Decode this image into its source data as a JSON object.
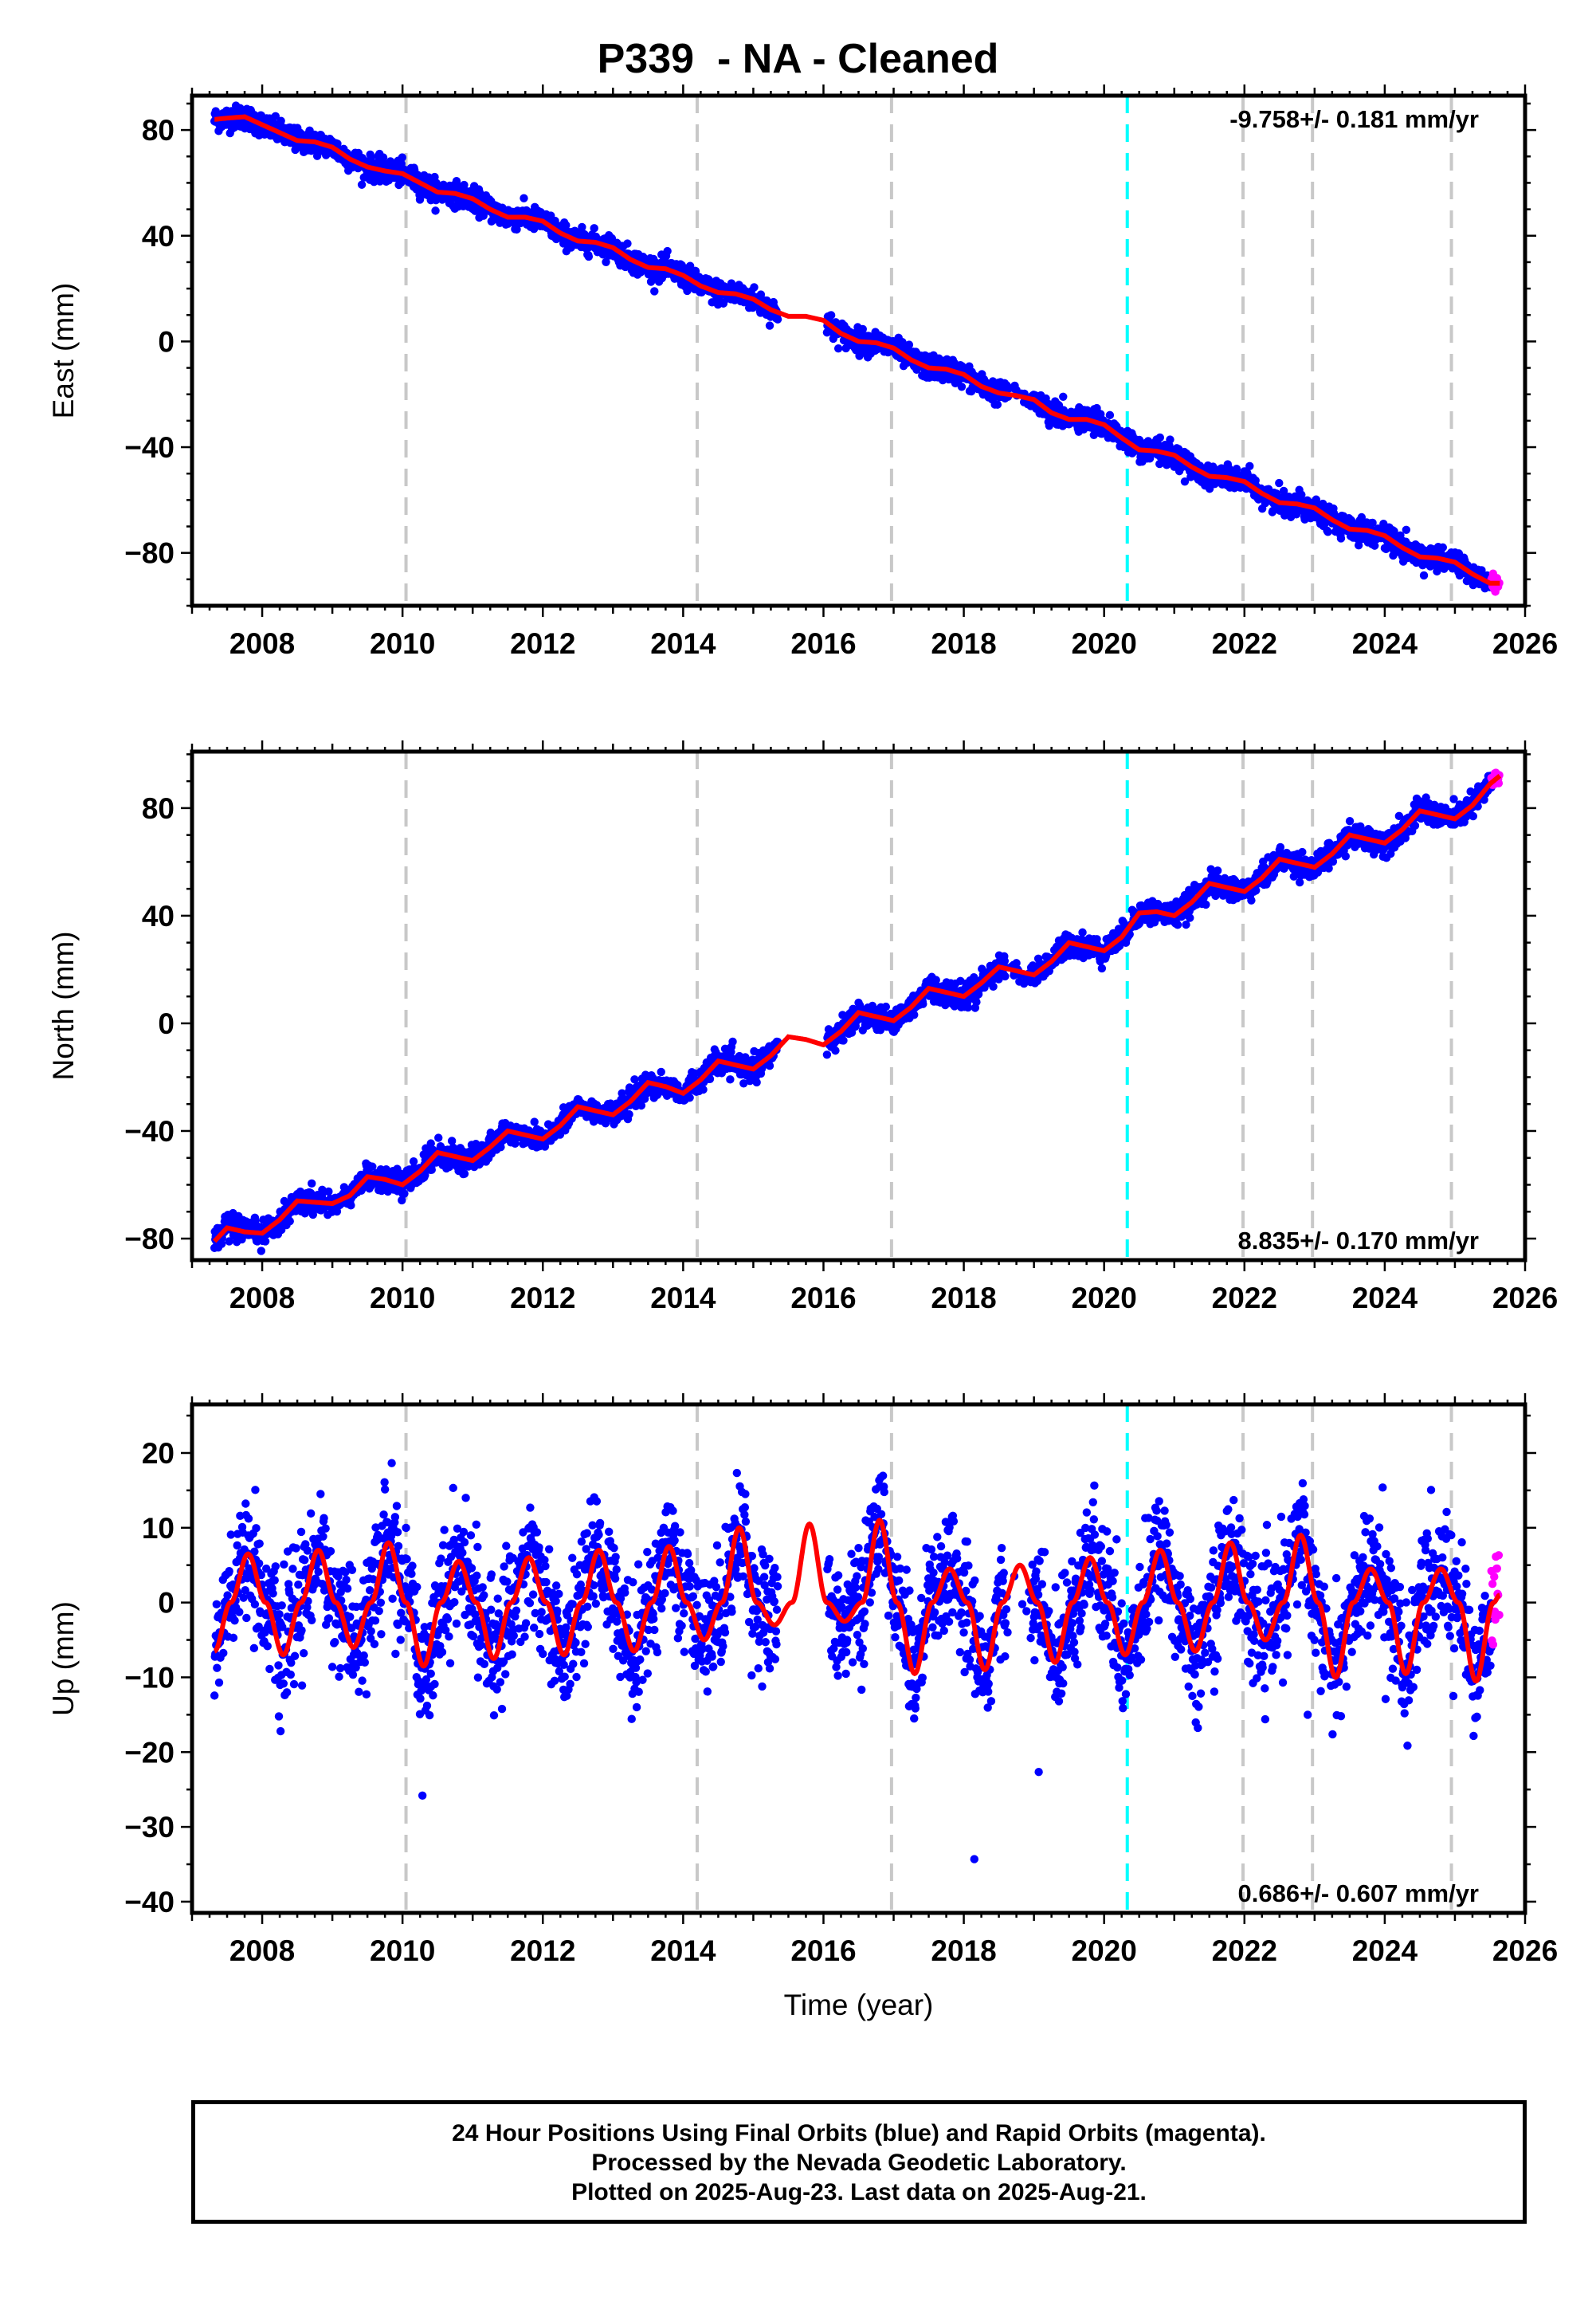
{
  "title": "P339  - NA - Cleaned",
  "caption": {
    "line1": "24 Hour Positions Using Final Orbits (blue) and Rapid Orbits (magenta).",
    "line2": "Processed by the Nevada Geodetic Laboratory.",
    "line3": "Plotted on 2025-Aug-23. Last data on 2025-Aug-21."
  },
  "colors": {
    "final_orbits": "#0000ff",
    "rapid_orbits": "#ff00ff",
    "model_fit": "#ff0000",
    "equipment_change": "#c8c8c8",
    "cyan_event": "#00ffff"
  },
  "chart_data": [
    {
      "type": "scatter",
      "panel": "east",
      "ylabel": "East (mm)",
      "xlabel": "",
      "xlim": [
        2007.0,
        2026.0
      ],
      "ylim": [
        -100,
        93
      ],
      "x_ticks": [
        2008,
        2010,
        2012,
        2014,
        2016,
        2018,
        2020,
        2022,
        2024,
        2026
      ],
      "y_ticks": [
        -80,
        -40,
        0,
        40,
        80
      ],
      "rate_label": "-9.758+/- 0.181 mm/yr",
      "rate_position": "top-right",
      "grid": false,
      "vertical_lines": {
        "gray_dashed": [
          2010.05,
          2014.2,
          2016.97,
          2021.98,
          2022.97,
          2024.95
        ],
        "cyan_dashed": [
          2020.33
        ]
      },
      "series": [
        {
          "role": "model-fit",
          "color": "#ff0000",
          "x": [
            2007.32,
            2007.5,
            2007.75,
            2008.0,
            2008.25,
            2008.5,
            2008.75,
            2009.0,
            2009.25,
            2009.5,
            2009.75,
            2010.0,
            2010.25,
            2010.5,
            2010.75,
            2011.0,
            2011.25,
            2011.5,
            2011.75,
            2012.0,
            2012.25,
            2012.5,
            2012.75,
            2013.0,
            2013.25,
            2013.5,
            2013.75,
            2014.0,
            2014.25,
            2014.5,
            2014.75,
            2015.0,
            2015.25,
            2015.5,
            2015.75,
            2016.0,
            2016.25,
            2016.5,
            2016.75,
            2017.0,
            2017.25,
            2017.5,
            2017.75,
            2018.0,
            2018.25,
            2018.5,
            2018.75,
            2019.0,
            2019.25,
            2019.5,
            2019.75,
            2020.0,
            2020.25,
            2020.5,
            2020.75,
            2021.0,
            2021.25,
            2021.5,
            2021.75,
            2022.0,
            2022.25,
            2022.5,
            2022.75,
            2023.0,
            2023.25,
            2023.5,
            2023.75,
            2024.0,
            2024.25,
            2024.5,
            2024.75,
            2025.0,
            2025.25,
            2025.5,
            2025.64
          ],
          "y": [
            84,
            84.5,
            85,
            82,
            79,
            76,
            75.5,
            73.5,
            69,
            66,
            64.5,
            63.5,
            60,
            56.5,
            56,
            54,
            50,
            47,
            47,
            45.5,
            41,
            38,
            37.5,
            35.5,
            31,
            28,
            27.5,
            25,
            21,
            18.5,
            18,
            16,
            12,
            9.5,
            9.5,
            8,
            3,
            0,
            -0.5,
            -2.5,
            -7,
            -10,
            -10.5,
            -12.5,
            -17,
            -19.5,
            -20.5,
            -22,
            -27,
            -29.5,
            -29.5,
            -31.5,
            -36.5,
            -41,
            -41.5,
            -43,
            -47.5,
            -51,
            -51.5,
            -53,
            -57.5,
            -61,
            -61.5,
            -63,
            -67.5,
            -71,
            -71.5,
            -73.5,
            -78,
            -81.5,
            -82,
            -83.5,
            -88,
            -91.5,
            -91.5
          ]
        }
      ]
    },
    {
      "type": "scatter",
      "panel": "north",
      "ylabel": "North (mm)",
      "xlabel": "",
      "xlim": [
        2007.0,
        2026.0
      ],
      "ylim": [
        -88,
        101
      ],
      "x_ticks": [
        2008,
        2010,
        2012,
        2014,
        2016,
        2018,
        2020,
        2022,
        2024,
        2026
      ],
      "y_ticks": [
        -80,
        -40,
        0,
        40,
        80
      ],
      "rate_label": "8.835+/- 0.170 mm/yr",
      "rate_position": "bottom-right",
      "grid": false,
      "vertical_lines": {
        "gray_dashed": [
          2010.05,
          2014.2,
          2016.97,
          2021.98,
          2022.97,
          2024.95
        ],
        "cyan_dashed": [
          2020.33
        ]
      },
      "series": [
        {
          "role": "model-fit",
          "color": "#ff0000",
          "x": [
            2007.32,
            2007.5,
            2007.75,
            2008.0,
            2008.25,
            2008.5,
            2008.75,
            2009.0,
            2009.25,
            2009.5,
            2009.75,
            2010.0,
            2010.25,
            2010.5,
            2010.75,
            2011.0,
            2011.25,
            2011.5,
            2011.75,
            2012.0,
            2012.25,
            2012.5,
            2012.75,
            2013.0,
            2013.25,
            2013.5,
            2013.75,
            2014.0,
            2014.25,
            2014.5,
            2014.75,
            2015.0,
            2015.25,
            2015.5,
            2015.75,
            2016.0,
            2016.25,
            2016.5,
            2016.75,
            2017.0,
            2017.25,
            2017.5,
            2017.75,
            2018.0,
            2018.25,
            2018.5,
            2018.75,
            2019.0,
            2019.25,
            2019.5,
            2019.75,
            2020.0,
            2020.25,
            2020.5,
            2020.75,
            2021.0,
            2021.25,
            2021.5,
            2021.75,
            2022.0,
            2022.25,
            2022.5,
            2022.75,
            2023.0,
            2023.25,
            2023.5,
            2023.75,
            2024.0,
            2024.25,
            2024.5,
            2024.75,
            2025.0,
            2025.25,
            2025.5,
            2025.64
          ],
          "y": [
            -81,
            -76,
            -77.5,
            -78,
            -73,
            -66,
            -66.5,
            -67,
            -64,
            -57,
            -58,
            -60,
            -55,
            -48,
            -49.5,
            -51,
            -46,
            -40,
            -41.5,
            -43,
            -38,
            -31,
            -32.5,
            -34,
            -29,
            -22,
            -23.5,
            -26,
            -21,
            -14,
            -15.5,
            -17,
            -12,
            -5,
            -6,
            -8,
            -3,
            4,
            2.5,
            1,
            6,
            13,
            11.5,
            10,
            15,
            21,
            19.5,
            18,
            23,
            30,
            28.5,
            27,
            32,
            41,
            41.5,
            40,
            45,
            52,
            50.5,
            49,
            54,
            61,
            59.5,
            58,
            63,
            70,
            68.5,
            67,
            72,
            79,
            77.5,
            76,
            81,
            89,
            92
          ]
        }
      ]
    },
    {
      "type": "scatter",
      "panel": "up",
      "ylabel": "Up (mm)",
      "xlabel": "Time (year)",
      "xlim": [
        2007.0,
        2026.0
      ],
      "ylim": [
        -41.5,
        26.5
      ],
      "x_ticks": [
        2008,
        2010,
        2012,
        2014,
        2016,
        2018,
        2020,
        2022,
        2024,
        2026
      ],
      "y_ticks": [
        -40,
        -30,
        -20,
        -10,
        0,
        10,
        20
      ],
      "rate_label": "0.686+/- 0.607 mm/yr",
      "rate_position": "bottom-right",
      "grid": false,
      "vertical_lines": {
        "gray_dashed": [
          2010.05,
          2014.2,
          2016.97,
          2021.98,
          2022.97,
          2024.95
        ],
        "cyan_dashed": [
          2020.33
        ]
      },
      "series": [
        {
          "role": "model-fit",
          "color": "#ff0000",
          "x": [
            2007.32,
            2007.55,
            2007.8,
            2008.05,
            2008.3,
            2008.55,
            2008.8,
            2009.05,
            2009.3,
            2009.55,
            2009.8,
            2010.05,
            2010.3,
            2010.55,
            2010.8,
            2011.05,
            2011.3,
            2011.55,
            2011.8,
            2012.05,
            2012.3,
            2012.55,
            2012.8,
            2013.05,
            2013.3,
            2013.55,
            2013.8,
            2014.05,
            2014.3,
            2014.55,
            2014.8,
            2015.05,
            2015.3,
            2015.55,
            2015.8,
            2016.05,
            2016.3,
            2016.55,
            2016.8,
            2017.05,
            2017.3,
            2017.55,
            2017.8,
            2018.05,
            2018.3,
            2018.55,
            2018.8,
            2019.05,
            2019.3,
            2019.55,
            2019.8,
            2020.05,
            2020.3,
            2020.55,
            2020.8,
            2021.05,
            2021.3,
            2021.55,
            2021.8,
            2022.05,
            2022.3,
            2022.55,
            2022.8,
            2023.05,
            2023.3,
            2023.55,
            2023.8,
            2024.05,
            2024.3,
            2024.55,
            2024.8,
            2025.05,
            2025.3,
            2025.55,
            2025.64
          ],
          "y": [
            -6.5,
            0,
            6.5,
            0,
            -7,
            0,
            7,
            0,
            -6,
            0,
            8,
            0,
            -8.5,
            0,
            5.5,
            0,
            -7.5,
            0,
            6,
            0,
            -7,
            0,
            7,
            0,
            -6.5,
            0,
            7.5,
            0,
            -5,
            0,
            10,
            0,
            -3,
            0,
            10.5,
            0,
            -2.5,
            0,
            11,
            0,
            -9.5,
            0,
            4.5,
            0,
            -9,
            0,
            5,
            0,
            -8,
            0,
            6,
            0,
            -7,
            0,
            7,
            0,
            -6.5,
            0,
            8,
            0,
            -5,
            0,
            9,
            0,
            -10,
            0,
            4.5,
            0,
            -9.5,
            0,
            4.5,
            0,
            -10.5,
            0,
            1
          ]
        }
      ]
    }
  ]
}
